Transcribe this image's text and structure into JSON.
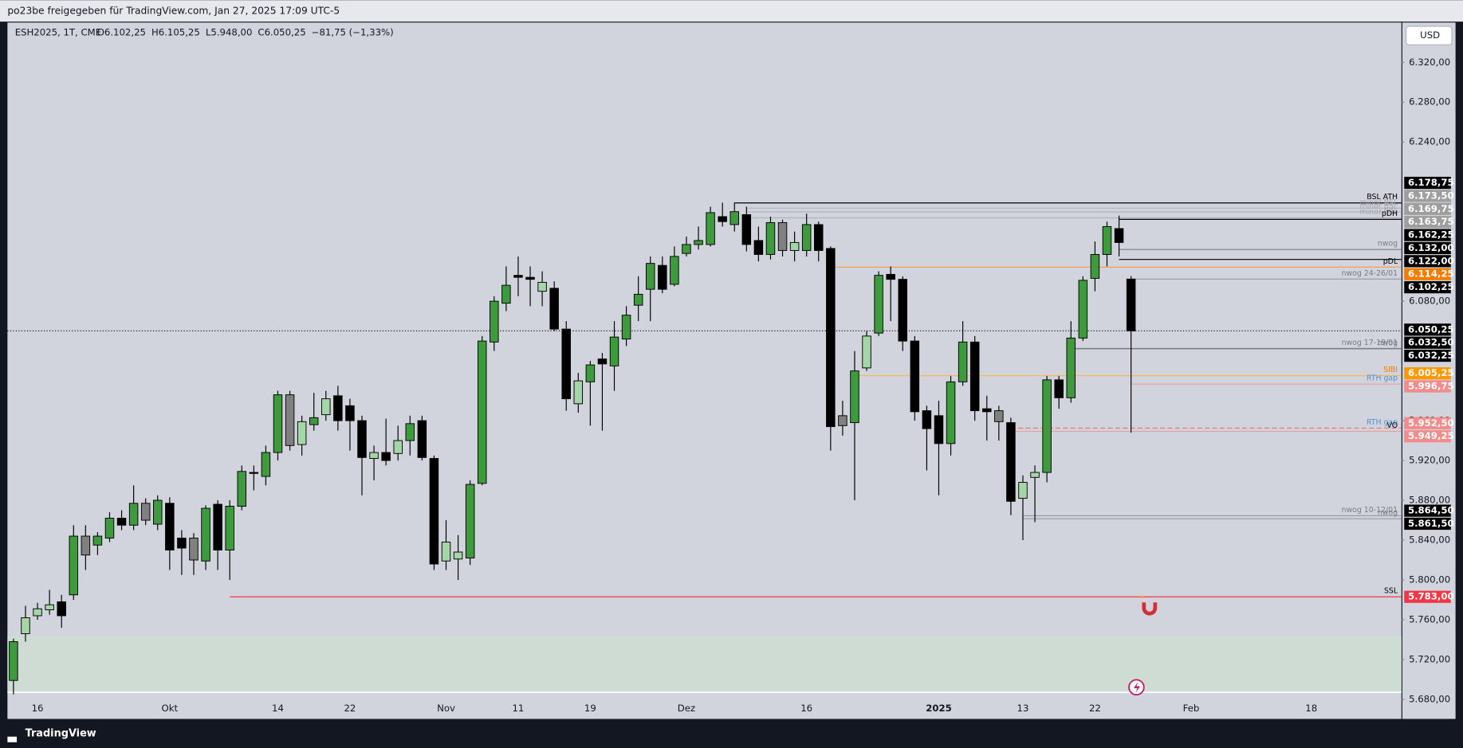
{
  "header": {
    "text": "po23be freigegeben für TradingView.com, Jan 27, 2025 17:09 UTC-5"
  },
  "chart_data": {
    "type": "candlestick",
    "symbol": "ESH2025, 1T, CME",
    "ohlc_legend": [
      "O6.102,25",
      "H6.105,25",
      "L5.948,00",
      "C6.050,25",
      "−81,75 (−1,33%)"
    ],
    "currency": "USD",
    "categories": [
      null,
      null,
      "16",
      null,
      null,
      null,
      null,
      null,
      null,
      null,
      null,
      null,
      null,
      "Okt",
      null,
      null,
      null,
      null,
      null,
      null,
      null,
      null,
      "14",
      null,
      null,
      null,
      null,
      null,
      "22",
      null,
      null,
      null,
      null,
      null,
      null,
      null,
      "Nov",
      null,
      null,
      null,
      null,
      null,
      "11",
      null,
      null,
      null,
      null,
      null,
      "19",
      null,
      null,
      null,
      null,
      null,
      null,
      null,
      "Dez",
      null,
      null,
      null,
      null,
      null,
      null,
      null,
      null,
      null,
      "16",
      null,
      null,
      null,
      null,
      null,
      null,
      null,
      null,
      null,
      null,
      "2025",
      null,
      null,
      null,
      null,
      null,
      null,
      "13",
      null,
      null,
      null,
      null,
      null,
      "22",
      null,
      null,
      null,
      null,
      null,
      null,
      null,
      "Feb",
      null,
      null,
      null,
      null,
      null,
      null,
      null,
      null,
      null,
      "18",
      null,
      null,
      null,
      null,
      null,
      null,
      null
    ],
    "open": [
      5699,
      5746,
      5764,
      5770,
      5778,
      5785,
      5844,
      5835,
      5842,
      5862,
      5855,
      5877,
      5856,
      5877,
      5842,
      5842,
      5819,
      5876,
      5830,
      5874,
      5908,
      5904,
      5928,
      5986,
      5936,
      5956,
      5966,
      5985,
      5975,
      5960,
      5922,
      5928,
      5927,
      5940,
      5960,
      5922,
      5819,
      5821,
      5822,
      5897,
      6039,
      6078,
      6106,
      6104,
      6090,
      6093,
      6052,
      5977,
      5999,
      6022,
      6015,
      6042,
      6076,
      6092,
      6116,
      6097,
      6128,
      6137,
      6137,
      6165,
      6157,
      6167,
      6141,
      6127,
      6159,
      6131,
      6131,
      6157,
      6133,
      5965,
      5958,
      6013,
      6048,
      6107,
      6102,
      6040,
      5970,
      5965,
      5937,
      5999,
      6039,
      5972,
      5970,
      5958,
      5882,
      5903,
      5908,
      6001,
      5983,
      6043,
      6103,
      6127,
      6153,
      6102.25,
      null,
      null,
      null,
      null,
      null,
      null,
      null,
      null,
      null,
      null,
      null,
      null,
      null,
      null,
      null,
      null,
      null,
      null,
      null,
      null,
      null,
      null
    ],
    "high": [
      5741,
      5774,
      5777,
      5790,
      5785,
      5855,
      5855,
      5848,
      5868,
      5870,
      5895,
      5882,
      5885,
      5883,
      5850,
      5847,
      5875,
      5880,
      5880,
      5915,
      5915,
      5935,
      5990,
      5990,
      5965,
      5988,
      5990,
      5995,
      5982,
      5965,
      5935,
      5962,
      5955,
      5965,
      5965,
      5925,
      5860,
      5845,
      5900,
      6045,
      6085,
      6115,
      6125,
      6115,
      6110,
      6100,
      6060,
      6008,
      6020,
      6028,
      6060,
      6075,
      6105,
      6125,
      6125,
      6135,
      6145,
      6155,
      6175,
      6179,
      6179,
      6175,
      6155,
      6165,
      6162,
      6150,
      6168,
      6160,
      6135,
      5980,
      6030,
      6050,
      6110,
      6115,
      6105,
      6045,
      5975,
      5980,
      6005,
      6060,
      6045,
      5985,
      5975,
      5963,
      5905,
      5915,
      6005,
      6005,
      6060,
      6105,
      6140,
      6160,
      6166,
      6105.25,
      null,
      null,
      null,
      null,
      null,
      null,
      null,
      null,
      null,
      null,
      null,
      null,
      null,
      null,
      null,
      null,
      null,
      null,
      null,
      null,
      null,
      null
    ],
    "low": [
      5685,
      5738,
      5760,
      5765,
      5752,
      5780,
      5810,
      5825,
      5838,
      5850,
      5850,
      5855,
      5850,
      5810,
      5805,
      5805,
      5810,
      5810,
      5800,
      5870,
      5890,
      5895,
      5920,
      5930,
      5925,
      5950,
      5960,
      5950,
      5930,
      5885,
      5900,
      5915,
      5920,
      5925,
      5920,
      5810,
      5810,
      5800,
      5815,
      5895,
      6030,
      6070,
      6085,
      6075,
      6075,
      6050,
      5970,
      5968,
      5955,
      5950,
      5990,
      6035,
      6060,
      6060,
      6088,
      6095,
      6125,
      6132,
      6135,
      6155,
      6150,
      6130,
      6120,
      6122,
      6125,
      6120,
      6125,
      6120,
      5930,
      5945,
      5880,
      6010,
      6045,
      6060,
      6030,
      5960,
      5910,
      5885,
      5925,
      5995,
      5960,
      5940,
      5940,
      5865,
      5840,
      5858,
      5898,
      5972,
      5978,
      6040,
      6090,
      6115,
      6125,
      5948,
      null,
      null,
      null,
      null,
      null,
      null,
      null,
      null,
      null,
      null,
      null,
      null,
      null,
      null,
      null,
      null,
      null,
      null,
      null,
      null,
      null,
      null
    ],
    "close": [
      5738,
      5762,
      5771,
      5775,
      5764,
      5844,
      5825,
      5844,
      5862,
      5855,
      5877,
      5860,
      5880,
      5830,
      5832,
      5820,
      5872,
      5830,
      5874,
      5909,
      5907,
      5928,
      5986,
      5935,
      5959,
      5963,
      5982,
      5960,
      5960,
      5923,
      5928,
      5920,
      5940,
      5957,
      5923,
      5816,
      5838,
      5828,
      5896,
      6040,
      6080,
      6096,
      6104,
      6102,
      6099,
      6052,
      5982,
      6000,
      6016,
      6017,
      6044,
      6066,
      6087,
      6118,
      6092,
      6125,
      6137,
      6141,
      6169,
      6160,
      6170,
      6137,
      6127,
      6159,
      6131,
      6139,
      6157,
      6131,
      5954,
      5955,
      6010,
      6045,
      6106,
      6102,
      6040,
      5969,
      5952,
      5937,
      5999,
      6039,
      5970,
      5969,
      5959,
      5879,
      5898,
      5908,
      6001,
      5983,
      6043,
      6101,
      6127,
      6155,
      6139,
      6050.25,
      null,
      null,
      null,
      null,
      null,
      null,
      null,
      null,
      null,
      null,
      null,
      null,
      null,
      null,
      null,
      null,
      null,
      null,
      null,
      null,
      null,
      null
    ],
    "colors": [
      "#3d9a3d",
      "#a5d6a7",
      "#a5d6a7",
      "#a5d6a7",
      "#000000",
      "#3d9a3d",
      "#808080",
      "#3d9a3d",
      "#3d9a3d",
      "#000000",
      "#3d9a3d",
      "#808080",
      "#3d9a3d",
      "#000000",
      "#000000",
      "#808080",
      "#3d9a3d",
      "#000000",
      "#3d9a3d",
      "#3d9a3d",
      "#000000",
      "#3d9a3d",
      "#3d9a3d",
      "#808080",
      "#a5d6a7",
      "#3d9a3d",
      "#a5d6a7",
      "#000000",
      "#000000",
      "#000000",
      "#a5d6a7",
      "#000000",
      "#a5d6a7",
      "#3d9a3d",
      "#000000",
      "#000000",
      "#a5d6a7",
      "#a5d6a7",
      "#3d9a3d",
      "#3d9a3d",
      "#3d9a3d",
      "#3d9a3d",
      "#000000",
      "#000000",
      "#a5d6a7",
      "#000000",
      "#000000",
      "#a5d6a7",
      "#3d9a3d",
      "#000000",
      "#3d9a3d",
      "#3d9a3d",
      "#3d9a3d",
      "#3d9a3d",
      "#000000",
      "#3d9a3d",
      "#3d9a3d",
      "#3d9a3d",
      "#3d9a3d",
      "#000000",
      "#3d9a3d",
      "#000000",
      "#000000",
      "#3d9a3d",
      "#808080",
      "#a5d6a7",
      "#3d9a3d",
      "#000000",
      "#000000",
      "#808080",
      "#3d9a3d",
      "#a5d6a7",
      "#3d9a3d",
      "#000000",
      "#000000",
      "#000000",
      "#000000",
      "#000000",
      "#3d9a3d",
      "#3d9a3d",
      "#000000",
      "#000000",
      "#808080",
      "#000000",
      "#a5d6a7",
      "#a5d6a7",
      "#3d9a3d",
      "#000000",
      "#3d9a3d",
      "#3d9a3d",
      "#3d9a3d",
      "#3d9a3d",
      "#000000",
      "#000000",
      null,
      null,
      null,
      null,
      null,
      null,
      null,
      null,
      null,
      null,
      null,
      null,
      null,
      null,
      null,
      null,
      null,
      null,
      null,
      null,
      null,
      null
    ],
    "ylim": [
      5680,
      6360
    ],
    "yticks": [
      {
        "value": 6320,
        "label": "6.320,00"
      },
      {
        "value": 6280,
        "label": "6.280,00"
      },
      {
        "value": 6240,
        "label": "6.240,00"
      },
      {
        "value": 6080,
        "label": "6.080,00"
      },
      {
        "value": 5960,
        "label": "5.960,00"
      },
      {
        "value": 5920,
        "label": "5.920,00"
      },
      {
        "value": 5880,
        "label": "5.880,00"
      },
      {
        "value": 5840,
        "label": "5.840,00"
      },
      {
        "value": 5800,
        "label": "5.800,00"
      },
      {
        "value": 5760,
        "label": "5.760,00"
      },
      {
        "value": 5720,
        "label": "5.720,00"
      },
      {
        "value": 5680,
        "label": "5.680,00"
      }
    ],
    "zone": {
      "low": 5687,
      "high": 5744,
      "color": "#cfdcd4"
    },
    "levels": [
      {
        "value": 6178.75,
        "label": "6.178,75",
        "color": "#000000",
        "name": "BSL ATH",
        "name_color": "#000000",
        "line_color": "#000000"
      },
      {
        "value": 6173.5,
        "label": "6.173,50",
        "color": "#9e9e9e",
        "name": "minor BSL",
        "name_color": "#a0a3aa",
        "line_color": "#b0b3ba"
      },
      {
        "value": 6169.75,
        "label": "6.169,75",
        "color": "#9e9e9e",
        "name": "minor BSL",
        "name_color": "#a0a3aa",
        "line_color": "#b0b3ba"
      },
      {
        "value": 6163.75,
        "label": "6.163,75",
        "color": "#9e9e9e",
        "name": "minor BSL",
        "name_color": "#a0a3aa",
        "line_color": "#b0b3ba"
      },
      {
        "value": 6162.25,
        "label": "6.162,25",
        "color": "#000000",
        "name": "pDH",
        "name_color": "#000000",
        "line_color": "#000000"
      },
      {
        "value": 6132,
        "label": "6.132,00",
        "color": "#000000",
        "name": "nwog",
        "name_color": "#787b86",
        "line_color": "#787b86"
      },
      {
        "value": 6122,
        "label": "6.122,00",
        "color": "#000000",
        "line_color": "#000000"
      },
      {
        "value": 6114.25,
        "label": "6.114,25",
        "color": "#f57c00",
        "name": "pDL",
        "name_color": "#000000",
        "line_color": "#f5a05a"
      },
      {
        "value": 6102.25,
        "label": "6.102,25",
        "color": "#000000",
        "name": "nwog 24-26/01",
        "name_color": "#787b86",
        "line_color": "#9598a1"
      },
      {
        "value": 6050.25,
        "label": "6.050,25",
        "color": "#000000",
        "line_color": "#000000",
        "style": "dotted"
      },
      {
        "value": 6032.5,
        "label": "6.032,50",
        "color": "#000000",
        "name": "nwog 17-19/01",
        "name_color": "#787b86",
        "line_color": "#787b86"
      },
      {
        "value": 6032.25,
        "label": "6.032,25",
        "color": "#000000",
        "name": "nwog",
        "name_color": "#787b86",
        "line_color": "#787b86"
      },
      {
        "value": 6005.25,
        "label": "6.005,25",
        "color": "#ff9800",
        "name": "SIBI",
        "name_color": "#f57c00",
        "line_color": "#ffb74d"
      },
      {
        "value": 5996.75,
        "label": "5.996,75",
        "color": "#f28b8b",
        "name": "RTH gap",
        "name_color": "#5a8fc7",
        "line_color": "#e8a0a0"
      },
      {
        "value": 5952.5,
        "label": "5.952,50",
        "color": "#f28b8b",
        "name": "RTH gap",
        "name_color": "#5a8fc7",
        "line_color": "#e57373",
        "style": "dashed"
      },
      {
        "value": 5949.25,
        "label": "5.949,25",
        "color": "#f28b8b",
        "name": "VO",
        "name_color": "#000000",
        "line_color": "#e8a0a0"
      },
      {
        "value": 5864.5,
        "label": "5.864,50",
        "color": "#000000",
        "name": "nwog 10-12/01",
        "name_color": "#787b86",
        "line_color": "#9598a1"
      },
      {
        "value": 5861.5,
        "label": "5.861,50",
        "color": "#000000",
        "name": "nwog",
        "name_color": "#787b86",
        "line_color": "#9598a1"
      },
      {
        "value": 5783,
        "label": "5.783,00",
        "color": "#f23645",
        "name": "SSL",
        "name_color": "#000000",
        "line_color": "#f23645"
      }
    ]
  },
  "footer": {
    "brand": "TradingView"
  }
}
